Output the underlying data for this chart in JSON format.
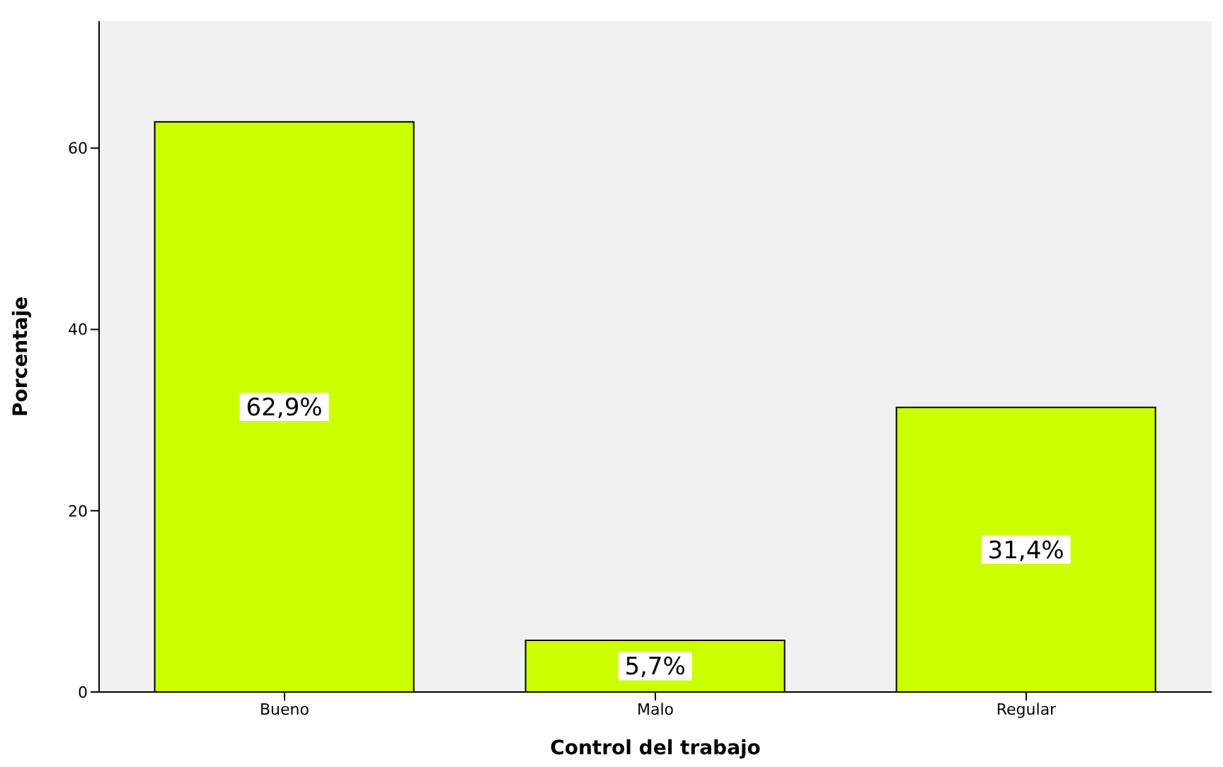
{
  "chart_data": {
    "type": "bar",
    "xlabel": "Control del trabajo",
    "ylabel": "Porcentaje",
    "categories": [
      "Bueno",
      "Malo",
      "Regular"
    ],
    "values": [
      62.9,
      5.7,
      31.4
    ],
    "value_labels": [
      "62,9%",
      "5,7%",
      "31,4%"
    ],
    "color": "#ccff00",
    "ylim": [
      0,
      74
    ],
    "yticks": [
      0,
      20,
      40,
      60
    ],
    "grid": false
  }
}
